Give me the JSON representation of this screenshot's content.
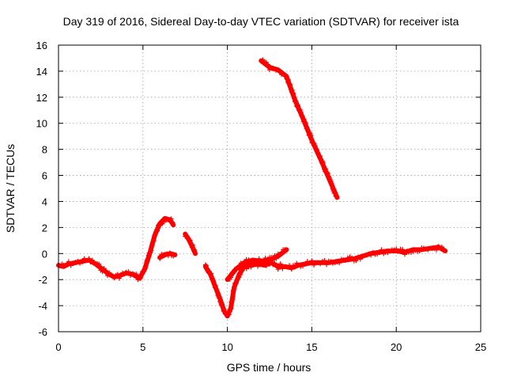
{
  "chart_data": {
    "type": "scatter",
    "title": "Day 319 of 2016, Sidereal Day-to-day VTEC variation (SDTVAR) for receiver ista",
    "xlabel": "GPS time / hours",
    "ylabel": "SDTVAR / TECUs",
    "xlim": [
      0,
      25
    ],
    "ylim": [
      -6,
      16
    ],
    "xticks": [
      0,
      5,
      10,
      15,
      20,
      25
    ],
    "xtick_labels": [
      "0",
      "5",
      "10",
      "15",
      "20",
      "25"
    ],
    "yticks": [
      -6,
      -4,
      -2,
      0,
      2,
      4,
      6,
      8,
      10,
      12,
      14,
      16
    ],
    "ytick_labels": [
      "-6",
      "-4",
      "-2",
      "0",
      "2",
      "4",
      "6",
      "8",
      "10",
      "12",
      "14",
      "16"
    ],
    "grid": true,
    "marker": "plus",
    "color": "#ff0000",
    "series": [
      {
        "name": "main",
        "x": [
          0.0,
          0.3,
          0.6,
          1.0,
          1.4,
          1.8,
          2.2,
          2.6,
          3.0,
          3.3,
          3.6,
          4.0,
          4.4,
          4.8,
          5.1,
          5.4,
          5.7,
          6.0,
          6.3,
          6.6,
          6.8
        ],
        "y": [
          -0.9,
          -1.0,
          -0.8,
          -0.7,
          -0.6,
          -0.5,
          -0.8,
          -1.2,
          -1.6,
          -1.8,
          -1.7,
          -1.5,
          -1.6,
          -1.9,
          -1.2,
          0.0,
          1.4,
          2.3,
          2.7,
          2.6,
          2.2
        ]
      },
      {
        "name": "seg2",
        "x": [
          6.0,
          6.3,
          6.6,
          6.9
        ],
        "y": [
          -0.3,
          -0.1,
          0.0,
          -0.1
        ]
      },
      {
        "name": "seg3",
        "x": [
          7.5,
          7.7,
          7.9,
          8.1
        ],
        "y": [
          1.5,
          1.1,
          0.6,
          0.0
        ]
      },
      {
        "name": "dip",
        "x": [
          8.7,
          9.0,
          9.3,
          9.6,
          9.8,
          10.0,
          10.2,
          10.4,
          10.7,
          11.0,
          11.4,
          11.8,
          12.2,
          12.6,
          13.0,
          13.4,
          13.8,
          14.2,
          14.6,
          15.0,
          15.5,
          16.0,
          16.5,
          17.0,
          17.5,
          18.0,
          18.5,
          19.0,
          19.5,
          20.0,
          20.5,
          21.0,
          21.5,
          22.0,
          22.5,
          22.9
        ],
        "y": [
          -1.0,
          -1.6,
          -2.6,
          -3.6,
          -4.4,
          -4.8,
          -4.2,
          -2.6,
          -1.6,
          -1.0,
          -0.9,
          -0.8,
          -0.9,
          -0.7,
          -1.0,
          -1.0,
          -1.1,
          -0.9,
          -0.8,
          -0.7,
          -0.7,
          -0.7,
          -0.6,
          -0.5,
          -0.4,
          -0.2,
          0.0,
          0.1,
          0.2,
          0.2,
          0.1,
          0.3,
          0.3,
          0.4,
          0.5,
          0.2
        ]
      },
      {
        "name": "seg5",
        "x": [
          10.0,
          10.5,
          11.0,
          11.5,
          12.0,
          12.5,
          13.0,
          13.5
        ],
        "y": [
          -2.0,
          -1.2,
          -0.7,
          -0.5,
          -0.6,
          -0.5,
          -0.2,
          0.3
        ]
      },
      {
        "name": "seg6",
        "x": [
          12.0,
          12.5,
          13.0,
          13.5,
          14.0,
          14.5,
          15.0,
          15.5,
          16.0,
          16.5
        ],
        "y": [
          14.8,
          14.3,
          14.1,
          13.6,
          11.8,
          10.3,
          8.7,
          7.3,
          5.8,
          4.3
        ]
      }
    ]
  }
}
